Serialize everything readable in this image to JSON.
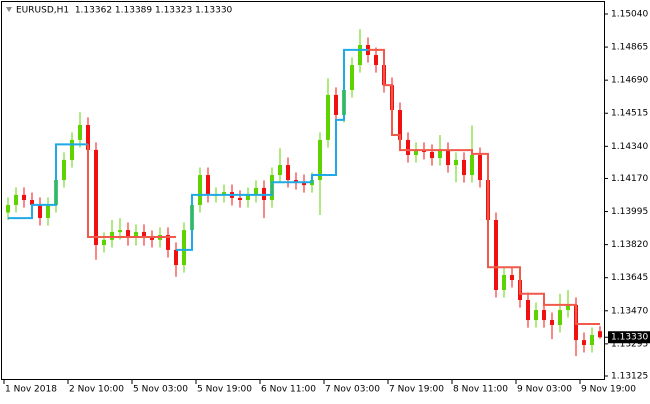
{
  "chart_data": {
    "type": "candlestick",
    "title": "EURUSD,H1  1.13362 1.13389 1.13323 1.13330",
    "xlim": [
      -0.5,
      74.5
    ],
    "xticks": [
      {
        "value": 0,
        "label": "1 Nov 2018"
      },
      {
        "value": 8,
        "label": "2 Nov 10:00"
      },
      {
        "value": 16,
        "label": "5 Nov 03:00"
      },
      {
        "value": 24,
        "label": "5 Nov 19:00"
      },
      {
        "value": 32,
        "label": "6 Nov 11:00"
      },
      {
        "value": 40,
        "label": "7 Nov 03:00"
      },
      {
        "value": 48,
        "label": "7 Nov 19:00"
      },
      {
        "value": 56,
        "label": "8 Nov 11:00"
      },
      {
        "value": 64,
        "label": "9 Nov 03:00"
      },
      {
        "value": 72,
        "label": "9 Nov 19:00"
      }
    ],
    "ylim": [
      1.13125,
      1.1504
    ],
    "yticks": [
      {
        "value": 1.1504,
        "label": "1.15040"
      },
      1.14865,
      {
        "value": 1.1469,
        "label": "1.14690"
      },
      1.14515,
      {
        "value": 1.1434,
        "label": "1.14340"
      },
      {
        "value": 1.1417,
        "label": "1.14170"
      },
      1.13995,
      {
        "value": 1.1382,
        "label": "1.13820"
      },
      1.13645,
      {
        "value": 1.1347,
        "label": "1.13470"
      },
      1.13295,
      1.13125
    ],
    "up_color": "#5fd300",
    "down_color": "#f01010",
    "open": [
      1.1399,
      1.1403,
      1.14083,
      1.14056,
      1.1403,
      1.13961,
      1.1403,
      1.14162,
      1.14268,
      1.14374,
      1.14453,
      1.14321,
      1.13818,
      1.13845,
      1.13887,
      1.13897,
      1.13855,
      1.13887,
      1.13855,
      1.13845,
      1.13871,
      1.13792,
      1.13712,
      1.13897,
      1.1403,
      1.14188,
      1.14083,
      1.14083,
      1.14098,
      1.14067,
      1.14056,
      1.14083,
      1.1412,
      1.14056,
      1.14188,
      1.14241,
      1.14162,
      1.14151,
      1.14135,
      1.14162,
      1.14374,
      1.14612,
      1.14506,
      1.14638,
      1.1477,
      1.14876,
      1.14823,
      1.1477,
      1.14664,
      1.14532,
      1.14374,
      1.14294,
      1.14321,
      1.1431,
      1.14278,
      1.14321,
      1.14241,
      1.14268,
      1.14188,
      1.14294,
      1.14162,
      1.1395,
      1.1358,
      1.13659,
      1.13633,
      1.13527,
      1.13421,
      1.13474,
      1.13421,
      1.13395,
      1.13474,
      1.13501,
      1.13315,
      1.13289,
      1.13362
    ],
    "high": [
      1.1407,
      1.14123,
      1.14123,
      1.14096,
      1.1407,
      1.1407,
      1.14202,
      1.14308,
      1.14414,
      1.1452,
      1.14493,
      1.14361,
      1.13885,
      1.1395,
      1.1396,
      1.13937,
      1.13927,
      1.13927,
      1.13895,
      1.13911,
      1.13911,
      1.13832,
      1.13937,
      1.1407,
      1.14228,
      1.14228,
      1.14123,
      1.14138,
      1.14138,
      1.14107,
      1.14123,
      1.1416,
      1.1416,
      1.14228,
      1.1433,
      1.14281,
      1.14202,
      1.14191,
      1.14202,
      1.14414,
      1.147,
      1.14652,
      1.14678,
      1.1481,
      1.1496,
      1.14916,
      1.14863,
      1.1481,
      1.14704,
      1.14572,
      1.14414,
      1.14361,
      1.14361,
      1.1435,
      1.144,
      1.14361,
      1.14308,
      1.14308,
      1.1445,
      1.14334,
      1.14202,
      1.1399,
      1.13699,
      1.13699,
      1.13673,
      1.13567,
      1.13514,
      1.13514,
      1.13461,
      1.1356,
      1.1358,
      1.13541,
      1.13355,
      1.13382,
      1.13389
    ],
    "low": [
      1.1395,
      1.1399,
      1.14016,
      1.1399,
      1.13921,
      1.13921,
      1.1399,
      1.14122,
      1.14228,
      1.14334,
      1.14281,
      1.1374,
      1.13778,
      1.13805,
      1.13847,
      1.13815,
      1.13815,
      1.13815,
      1.13805,
      1.13805,
      1.13752,
      1.1365,
      1.13672,
      1.13857,
      1.1399,
      1.14043,
      1.14043,
      1.14043,
      1.14027,
      1.14016,
      1.14016,
      1.14043,
      1.1396,
      1.14016,
      1.14148,
      1.14122,
      1.14111,
      1.14095,
      1.14095,
      1.13977,
      1.14334,
      1.14466,
      1.14466,
      1.14598,
      1.1473,
      1.14783,
      1.1473,
      1.14624,
      1.14492,
      1.14334,
      1.14254,
      1.14254,
      1.1427,
      1.14238,
      1.14238,
      1.14201,
      1.1415,
      1.14148,
      1.14148,
      1.14122,
      1.1391,
      1.1354,
      1.1354,
      1.13593,
      1.13487,
      1.13381,
      1.13381,
      1.13381,
      1.1332,
      1.13355,
      1.13434,
      1.1323,
      1.13249,
      1.13249,
      1.13323
    ],
    "close": [
      1.1403,
      1.14083,
      1.14056,
      1.1403,
      1.13961,
      1.1403,
      1.14162,
      1.14268,
      1.14374,
      1.14453,
      1.14321,
      1.13818,
      1.13845,
      1.13887,
      1.13897,
      1.13855,
      1.13887,
      1.13855,
      1.13845,
      1.13871,
      1.13792,
      1.13712,
      1.13897,
      1.1403,
      1.14188,
      1.14083,
      1.14083,
      1.14098,
      1.14067,
      1.14056,
      1.14083,
      1.1412,
      1.14056,
      1.14188,
      1.14241,
      1.14162,
      1.14151,
      1.14135,
      1.14162,
      1.14374,
      1.14612,
      1.14506,
      1.14638,
      1.1477,
      1.14876,
      1.14823,
      1.1477,
      1.14664,
      1.14532,
      1.14374,
      1.14294,
      1.14321,
      1.1431,
      1.14278,
      1.14321,
      1.14241,
      1.14268,
      1.14188,
      1.14294,
      1.14162,
      1.1395,
      1.1358,
      1.13659,
      1.13633,
      1.13527,
      1.13421,
      1.13474,
      1.13421,
      1.13395,
      1.13474,
      1.13501,
      1.13315,
      1.13289,
      1.13342,
      1.1333
    ],
    "series": [
      {
        "color": "#1fa9e6",
        "values": [
          1.1396,
          1.1396,
          1.1396,
          1.1396,
          1.1403,
          1.1403,
          1.1403,
          1.1435,
          1.1435,
          1.1435,
          1.1435,
          null,
          null,
          null,
          null,
          null,
          null,
          null,
          null,
          null,
          null,
          1.13792,
          1.13792,
          1.13792,
          1.14083,
          1.14083,
          1.14083,
          1.14083,
          1.14083,
          1.14083,
          1.14083,
          1.14083,
          1.14083,
          1.14083,
          1.1415,
          1.1415,
          1.1415,
          1.1415,
          1.1415,
          1.14188,
          1.14188,
          1.14188,
          1.1448,
          1.1485,
          1.1485,
          1.1485,
          null,
          null,
          null,
          null,
          null,
          null,
          null,
          null,
          null,
          null,
          null,
          null,
          null,
          null,
          null,
          null,
          null,
          null,
          null,
          null,
          null,
          null,
          null,
          null,
          null,
          null,
          null,
          null,
          null
        ]
      },
      {
        "color": "#f05a4a",
        "values": [
          null,
          null,
          null,
          null,
          null,
          null,
          null,
          null,
          null,
          null,
          1.1435,
          1.1386,
          1.1386,
          1.1386,
          1.1386,
          1.1386,
          1.1386,
          1.1386,
          1.1386,
          1.1386,
          1.1386,
          1.1386,
          null,
          null,
          null,
          null,
          null,
          null,
          null,
          null,
          null,
          null,
          null,
          null,
          null,
          null,
          null,
          null,
          null,
          null,
          null,
          null,
          null,
          null,
          null,
          1.1485,
          1.1485,
          1.1485,
          1.14664,
          1.144,
          1.1432,
          1.1432,
          1.1432,
          1.1432,
          1.1432,
          1.1432,
          1.1432,
          1.1432,
          1.1432,
          1.143,
          1.143,
          1.137,
          1.137,
          1.137,
          1.137,
          1.1356,
          1.1356,
          1.1356,
          1.13501,
          1.13501,
          1.13501,
          1.13501,
          1.134,
          1.134,
          1.134
        ]
      }
    ],
    "current_price": {
      "value": 1.1333,
      "label": "1.13330"
    }
  }
}
